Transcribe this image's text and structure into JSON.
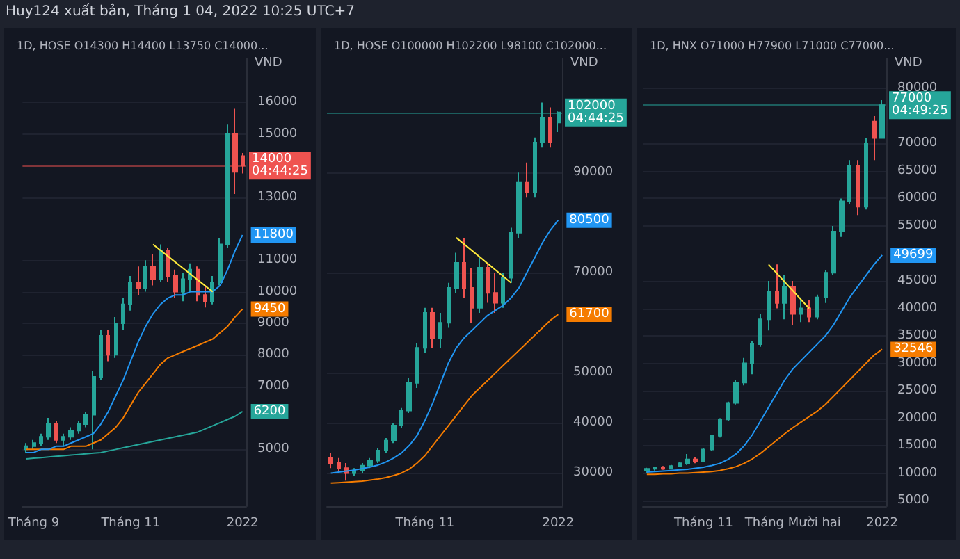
{
  "chart_data": [
    {
      "type": "candlestick",
      "title": "1D, HOSE O14300 H14400 L13750 C14000...",
      "ylabel": "VND",
      "annotations": [
        "Huy124 xuất bản, Tháng 1 04, 2022 10:25 UTC+7"
      ],
      "grid": "y",
      "categories": [
        null,
        "Tháng 9",
        null,
        null,
        null,
        null,
        null,
        null,
        null,
        null,
        null,
        null,
        null,
        null,
        "Tháng 11",
        null,
        null,
        null,
        null,
        null,
        null,
        null,
        null,
        null,
        null,
        null,
        null,
        null,
        null,
        "2022"
      ],
      "ylim": [
        3200,
        17400
      ],
      "yticks": [
        5000,
        7000,
        8000,
        9000,
        10000,
        11000,
        13000,
        15000,
        16000
      ],
      "ref_lines": [
        {
          "axis": "y",
          "value": 14000,
          "label": "14000\n04:44:25",
          "color": "#ef5350"
        }
      ],
      "series": [
        {
          "type": "line",
          "color": "#26a69a",
          "values": [
            4700,
            4720,
            4740,
            4760,
            4780,
            4800,
            4820,
            4840,
            4860,
            4880,
            4900,
            4950,
            5000,
            5050,
            5100,
            5150,
            5200,
            5250,
            5300,
            5350,
            5400,
            5450,
            5500,
            5550,
            5650,
            5750,
            5850,
            5950,
            6050,
            6200
          ],
          "value_labels": [
            null,
            null,
            null,
            null,
            null,
            null,
            null,
            null,
            null,
            null,
            null,
            null,
            null,
            null,
            null,
            null,
            null,
            null,
            null,
            null,
            null,
            null,
            null,
            null,
            null,
            null,
            null,
            null,
            null,
            "6200"
          ]
        },
        {
          "type": "line",
          "color": "#f57c00",
          "values": [
            5000,
            5000,
            5000,
            5000,
            5000,
            5000,
            5100,
            5100,
            5100,
            5200,
            5300,
            5500,
            5700,
            6000,
            6400,
            6800,
            7100,
            7400,
            7700,
            7900,
            8000,
            8100,
            8200,
            8300,
            8400,
            8500,
            8700,
            8900,
            9200,
            9450
          ],
          "value_labels": [
            null,
            null,
            null,
            null,
            null,
            null,
            null,
            null,
            null,
            null,
            null,
            null,
            null,
            null,
            null,
            null,
            null,
            null,
            null,
            null,
            null,
            null,
            null,
            null,
            null,
            null,
            null,
            null,
            null,
            "9450"
          ]
        },
        {
          "type": "line",
          "color": "#2196f3",
          "values": [
            4900,
            4900,
            5000,
            5000,
            5100,
            5100,
            5200,
            5300,
            5400,
            5500,
            5800,
            6200,
            6700,
            7200,
            7800,
            8400,
            8900,
            9300,
            9600,
            9800,
            9900,
            9900,
            10000,
            10000,
            10000,
            10000,
            10200,
            10700,
            11300,
            11800
          ],
          "value_labels": [
            null,
            null,
            null,
            null,
            null,
            null,
            null,
            null,
            null,
            null,
            null,
            null,
            null,
            null,
            null,
            null,
            null,
            null,
            null,
            null,
            null,
            null,
            null,
            null,
            null,
            null,
            null,
            null,
            null,
            "11800"
          ]
        },
        {
          "type": "line",
          "color": "#ffeb3b",
          "values": [
            null,
            null,
            null,
            null,
            null,
            null,
            null,
            null,
            null,
            null,
            null,
            null,
            null,
            null,
            null,
            null,
            null,
            11500,
            null,
            null,
            null,
            null,
            null,
            null,
            null,
            10000,
            null,
            null,
            null,
            null
          ]
        },
        {
          "type": "candlestick",
          "colors": [
            "#26a69a",
            "#26a69a",
            "#26a69a",
            "#26a69a",
            "#ef5350",
            "#26a69a",
            "#26a69a",
            "#26a69a",
            "#26a69a",
            "#26a69a",
            "#26a69a",
            "#ef5350",
            "#26a69a",
            "#26a69a",
            "#26a69a",
            "#ef5350",
            "#26a69a",
            "#ef5350",
            "#26a69a",
            "#ef5350",
            "#ef5350",
            "#26a69a",
            "#26a69a",
            "#ef5350",
            "#ef5350",
            "#26a69a",
            "#26a69a",
            "#26a69a",
            "#ef5350",
            "#ef5350"
          ],
          "ohlc": [
            [
              5000,
              5200,
              4900,
              5100
            ],
            [
              5100,
              5300,
              5000,
              5200
            ],
            [
              5200,
              5500,
              5100,
              5400
            ],
            [
              5400,
              6000,
              5300,
              5800
            ],
            [
              5800,
              5900,
              5200,
              5300
            ],
            [
              5300,
              5500,
              5100,
              5400
            ],
            [
              5400,
              5700,
              5300,
              5600
            ],
            [
              5600,
              5900,
              5500,
              5800
            ],
            [
              5800,
              6200,
              5700,
              6100
            ],
            [
              6100,
              7500,
              5000,
              7300
            ],
            [
              7300,
              8800,
              7200,
              8600
            ],
            [
              8600,
              8800,
              7800,
              8000
            ],
            [
              8000,
              9200,
              7900,
              9000
            ],
            [
              9000,
              9800,
              8800,
              9600
            ],
            [
              9600,
              10500,
              9400,
              10300
            ],
            [
              10300,
              10800,
              9900,
              10100
            ],
            [
              10100,
              11000,
              10000,
              10800
            ],
            [
              10800,
              11200,
              10200,
              10400
            ],
            [
              10400,
              11500,
              10300,
              11300
            ],
            [
              11300,
              11400,
              10300,
              10500
            ],
            [
              10500,
              10700,
              9800,
              10000
            ],
            [
              10000,
              10600,
              9700,
              10400
            ],
            [
              10400,
              10900,
              10000,
              10700
            ],
            [
              10700,
              10800,
              9700,
              9900
            ],
            [
              9900,
              10200,
              9500,
              9700
            ],
            [
              9700,
              10500,
              9600,
              10300
            ],
            [
              10300,
              11700,
              10200,
              11500
            ],
            [
              11500,
              15300,
              11400,
              15000
            ],
            [
              15000,
              15800,
              13100,
              13800
            ],
            [
              14300,
              14400,
              13750,
              14000
            ]
          ]
        }
      ]
    },
    {
      "type": "candlestick",
      "title": "1D, HOSE O100000 H102200 L98100 C102000...",
      "ylabel": "VND",
      "grid": "y",
      "categories": [
        null,
        null,
        null,
        null,
        null,
        null,
        null,
        null,
        null,
        null,
        null,
        null,
        "Tháng 11",
        null,
        null,
        null,
        null,
        null,
        null,
        null,
        null,
        null,
        null,
        null,
        null,
        null,
        null,
        null,
        null,
        "2022"
      ],
      "ylim": [
        23400,
        112800
      ],
      "yticks": [
        30000,
        40000,
        50000,
        70000,
        90000
      ],
      "ref_lines": [
        {
          "axis": "y",
          "value": 102000,
          "label": "102000\n04:44:25",
          "color": "#26a69a"
        }
      ],
      "series": [
        {
          "type": "line",
          "color": "#f57c00",
          "values": [
            28000,
            28100,
            28200,
            28300,
            28400,
            28600,
            28800,
            29100,
            29500,
            30000,
            30800,
            32000,
            33500,
            35500,
            37500,
            39500,
            41500,
            43500,
            45500,
            47000,
            48500,
            50000,
            51500,
            53000,
            54500,
            56000,
            57500,
            59000,
            60500,
            61700
          ],
          "value_labels": [
            null,
            null,
            null,
            null,
            null,
            null,
            null,
            null,
            null,
            null,
            null,
            null,
            null,
            null,
            null,
            null,
            null,
            null,
            null,
            null,
            null,
            null,
            null,
            null,
            null,
            null,
            null,
            null,
            null,
            "61700"
          ]
        },
        {
          "type": "line",
          "color": "#2196f3",
          "values": [
            30000,
            30200,
            30400,
            30600,
            30900,
            31200,
            31600,
            32200,
            33000,
            34000,
            35500,
            37500,
            40500,
            44000,
            48000,
            52000,
            55000,
            57000,
            58500,
            60000,
            61500,
            62500,
            63500,
            65000,
            67000,
            70000,
            73000,
            76000,
            78500,
            80500
          ],
          "value_labels": [
            null,
            null,
            null,
            null,
            null,
            null,
            null,
            null,
            null,
            null,
            null,
            null,
            null,
            null,
            null,
            null,
            null,
            null,
            null,
            null,
            null,
            null,
            null,
            null,
            null,
            null,
            null,
            null,
            null,
            "80500"
          ]
        },
        {
          "type": "line",
          "color": "#ffeb3b",
          "values": [
            null,
            null,
            null,
            null,
            null,
            null,
            null,
            null,
            null,
            null,
            null,
            null,
            null,
            null,
            null,
            null,
            77000,
            null,
            null,
            null,
            null,
            null,
            null,
            68000,
            null,
            null,
            null,
            null,
            null,
            null
          ]
        },
        {
          "type": "candlestick",
          "colors": [
            "#ef5350",
            "#ef5350",
            "#ef5350",
            "#26a69a",
            "#26a69a",
            "#26a69a",
            "#26a69a",
            "#26a69a",
            "#26a69a",
            "#26a69a",
            "#26a69a",
            "#26a69a",
            "#26a69a",
            "#ef5350",
            "#26a69a",
            "#26a69a",
            "#26a69a",
            "#ef5350",
            "#ef5350",
            "#26a69a",
            "#ef5350",
            "#ef5350",
            "#26a69a",
            "#26a69a",
            "#26a69a",
            "#ef5350",
            "#26a69a",
            "#26a69a",
            "#ef5350",
            "#26a69a"
          ],
          "ohlc": [
            [
              33000,
              34000,
              31000,
              32000
            ],
            [
              32000,
              33000,
              30000,
              31000
            ],
            [
              31000,
              32000,
              28500,
              30000
            ],
            [
              30000,
              31000,
              29500,
              30500
            ],
            [
              30500,
              32000,
              30000,
              31500
            ],
            [
              31500,
              33000,
              31000,
              32500
            ],
            [
              32500,
              35000,
              32000,
              34500
            ],
            [
              34500,
              37000,
              34000,
              36500
            ],
            [
              36500,
              40000,
              36000,
              39500
            ],
            [
              39500,
              43000,
              39000,
              42500
            ],
            [
              42500,
              49000,
              42000,
              48000
            ],
            [
              48000,
              56000,
              47000,
              55000
            ],
            [
              55000,
              63000,
              54000,
              62000
            ],
            [
              62000,
              63000,
              55000,
              57000
            ],
            [
              57000,
              62000,
              55000,
              60000
            ],
            [
              60000,
              68000,
              59000,
              67000
            ],
            [
              67000,
              74000,
              66000,
              72000
            ],
            [
              72000,
              77000,
              65000,
              67000
            ],
            [
              67000,
              71000,
              60000,
              63000
            ],
            [
              63000,
              73000,
              62000,
              71000
            ],
            [
              71000,
              72000,
              64000,
              66000
            ],
            [
              66000,
              70000,
              62000,
              64000
            ],
            [
              64000,
              70000,
              63000,
              69000
            ],
            [
              69000,
              79000,
              68000,
              78000
            ],
            [
              78000,
              90000,
              77000,
              88000
            ],
            [
              88000,
              92000,
              85000,
              86000
            ],
            [
              86000,
              97000,
              85000,
              96000
            ],
            [
              96000,
              104000,
              95000,
              101000
            ],
            [
              101000,
              103000,
              95000,
              96000
            ],
            [
              100000,
              102200,
              98100,
              102000
            ]
          ]
        }
      ]
    },
    {
      "type": "candlestick",
      "title": "1D, HNX O71000 H77900 L71000 C77000...",
      "ylabel": "VND",
      "grid": "y",
      "categories": [
        null,
        null,
        null,
        null,
        null,
        null,
        null,
        "Tháng 11",
        null,
        null,
        null,
        null,
        null,
        null,
        null,
        null,
        null,
        null,
        "Tháng Mười hai",
        null,
        null,
        null,
        null,
        null,
        null,
        null,
        null,
        null,
        null,
        "2022"
      ],
      "ylim": [
        4000,
        85500
      ],
      "yticks": [
        5000,
        10000,
        15000,
        20000,
        25000,
        30000,
        35000,
        40000,
        45000,
        55000,
        60000,
        65000,
        70000,
        80000
      ],
      "ref_lines": [
        {
          "axis": "y",
          "value": 77000,
          "label": "77000\n04:49:25",
          "color": "#26a69a"
        }
      ],
      "series": [
        {
          "type": "line",
          "color": "#f57c00",
          "values": [
            9800,
            9800,
            9900,
            9900,
            10000,
            10000,
            10100,
            10200,
            10300,
            10500,
            10800,
            11200,
            11800,
            12600,
            13600,
            14800,
            16000,
            17200,
            18300,
            19300,
            20300,
            21300,
            22500,
            24000,
            25500,
            27000,
            28500,
            30000,
            31500,
            32546
          ],
          "value_labels": [
            null,
            null,
            null,
            null,
            null,
            null,
            null,
            null,
            null,
            null,
            null,
            null,
            null,
            null,
            null,
            null,
            null,
            null,
            null,
            null,
            null,
            null,
            null,
            null,
            null,
            null,
            null,
            null,
            null,
            "32546"
          ]
        },
        {
          "type": "line",
          "color": "#2196f3",
          "values": [
            10200,
            10300,
            10400,
            10500,
            10600,
            10700,
            10900,
            11100,
            11400,
            11800,
            12500,
            13500,
            15000,
            17000,
            19500,
            22000,
            24500,
            27000,
            29000,
            30500,
            32000,
            33500,
            35000,
            37000,
            39500,
            42000,
            44000,
            46000,
            48000,
            49699
          ],
          "value_labels": [
            null,
            null,
            null,
            null,
            null,
            null,
            null,
            null,
            null,
            null,
            null,
            null,
            null,
            null,
            null,
            null,
            null,
            null,
            null,
            null,
            null,
            null,
            null,
            null,
            null,
            null,
            null,
            null,
            null,
            "49699"
          ]
        },
        {
          "type": "line",
          "color": "#ffeb3b",
          "values": [
            null,
            null,
            null,
            null,
            null,
            null,
            null,
            null,
            null,
            null,
            null,
            null,
            null,
            null,
            null,
            48000,
            null,
            null,
            null,
            null,
            40000,
            null,
            null,
            null,
            null,
            null,
            null,
            null,
            null,
            null
          ]
        },
        {
          "type": "candlestick",
          "colors": [
            "#26a69a",
            "#26a69a",
            "#ef5350",
            "#26a69a",
            "#26a69a",
            "#26a69a",
            "#ef5350",
            "#26a69a",
            "#26a69a",
            "#26a69a",
            "#26a69a",
            "#26a69a",
            "#26a69a",
            "#26a69a",
            "#26a69a",
            "#26a69a",
            "#ef5350",
            "#26a69a",
            "#ef5350",
            "#26a69a",
            "#ef5350",
            "#26a69a",
            "#26a69a",
            "#26a69a",
            "#26a69a",
            "#26a69a",
            "#ef5350",
            "#26a69a",
            "#ef5350",
            "#26a69a"
          ],
          "ohlc": [
            [
              10500,
              11000,
              10000,
              10800
            ],
            [
              10800,
              11200,
              10500,
              11000
            ],
            [
              11000,
              11300,
              10600,
              10800
            ],
            [
              10800,
              11500,
              10700,
              11300
            ],
            [
              11300,
              12000,
              11200,
              11800
            ],
            [
              11800,
              13500,
              11500,
              12500
            ],
            [
              12500,
              13000,
              11800,
              12200
            ],
            [
              12200,
              14500,
              12000,
              14300
            ],
            [
              14300,
              17000,
              14000,
              16800
            ],
            [
              16800,
              20000,
              16500,
              19800
            ],
            [
              19800,
              23000,
              19500,
              22800
            ],
            [
              22800,
              27000,
              22500,
              26500
            ],
            [
              26500,
              31000,
              26000,
              30000
            ],
            [
              30000,
              34000,
              28000,
              33500
            ],
            [
              33500,
              39000,
              33000,
              38000
            ],
            [
              38000,
              45000,
              36000,
              43000
            ],
            [
              43000,
              48000,
              40000,
              41000
            ],
            [
              41000,
              46000,
              38000,
              44000
            ],
            [
              44000,
              45000,
              37000,
              39000
            ],
            [
              39000,
              42000,
              37500,
              40000
            ],
            [
              40000,
              41500,
              37500,
              38500
            ],
            [
              38500,
              42500,
              38000,
              42000
            ],
            [
              42000,
              47000,
              41000,
              46500
            ],
            [
              46500,
              55000,
              46000,
              54000
            ],
            [
              54000,
              60000,
              53000,
              59500
            ],
            [
              59500,
              67000,
              59000,
              66000
            ],
            [
              66000,
              67000,
              57000,
              58500
            ],
            [
              58500,
              71000,
              58000,
              70000
            ],
            [
              74000,
              75000,
              67000,
              71000
            ],
            [
              71000,
              77900,
              71000,
              77000
            ]
          ]
        }
      ]
    }
  ]
}
